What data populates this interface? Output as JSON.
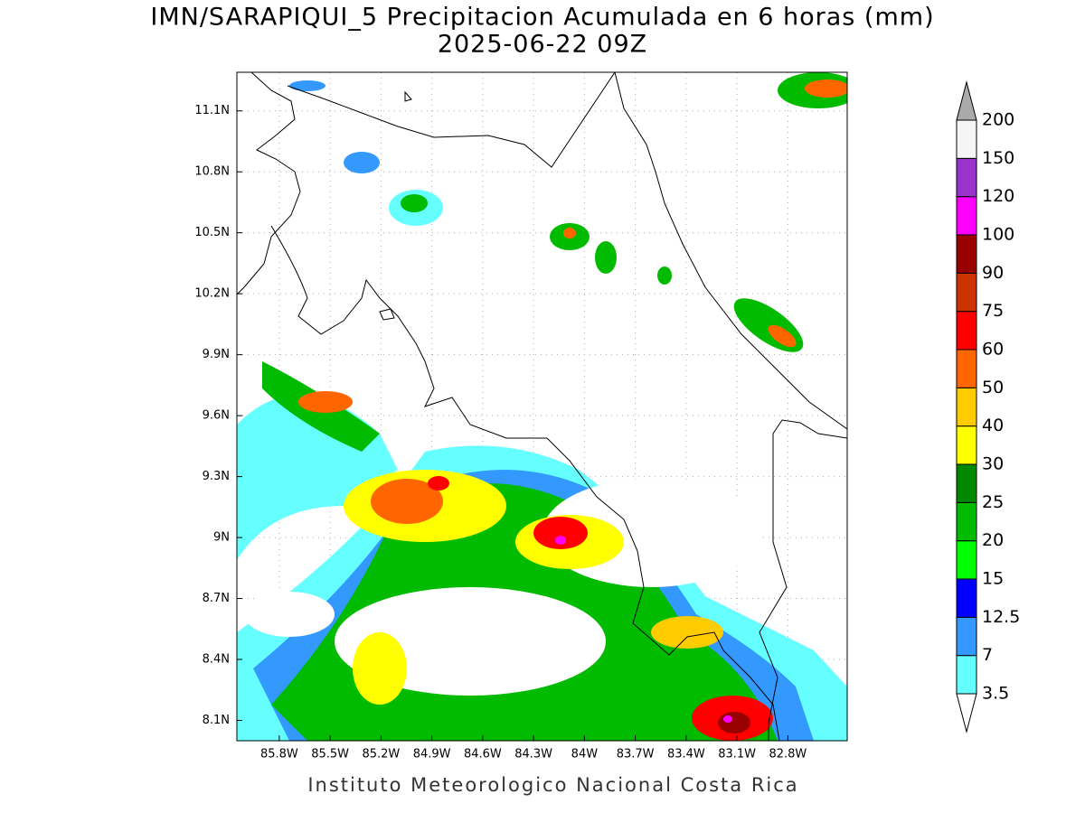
{
  "title": "IMN/SARAPIQUI_5 Precipitacion Acumulada en 6 horas (mm)",
  "subtitle": "2025-06-22 09Z",
  "map": {
    "xlim": [
      -86.05,
      -82.45
    ],
    "ylim": [
      8.0,
      11.29
    ],
    "xticks": [
      {
        "value": -85.8,
        "label": "85.8W"
      },
      {
        "value": -85.5,
        "label": "85.5W"
      },
      {
        "value": -85.2,
        "label": "85.2W"
      },
      {
        "value": -84.9,
        "label": "84.9W"
      },
      {
        "value": -84.6,
        "label": "84.6W"
      },
      {
        "value": -84.3,
        "label": "84.3W"
      },
      {
        "value": -84.0,
        "label": "84W"
      },
      {
        "value": -83.7,
        "label": "83.7W"
      },
      {
        "value": -83.4,
        "label": "83.4W"
      },
      {
        "value": -83.1,
        "label": "83.1W"
      },
      {
        "value": -82.8,
        "label": "82.8W"
      }
    ],
    "yticks": [
      {
        "value": 8.1,
        "label": "8.1N"
      },
      {
        "value": 8.4,
        "label": "8.4N"
      },
      {
        "value": 8.7,
        "label": "8.7N"
      },
      {
        "value": 9.0,
        "label": "9N"
      },
      {
        "value": 9.3,
        "label": "9.3N"
      },
      {
        "value": 9.6,
        "label": "9.6N"
      },
      {
        "value": 9.9,
        "label": "9.9N"
      },
      {
        "value": 10.2,
        "label": "10.2N"
      },
      {
        "value": 10.5,
        "label": "10.5N"
      },
      {
        "value": 10.8,
        "label": "10.8N"
      },
      {
        "value": 11.1,
        "label": "11.1N"
      }
    ],
    "grid": true
  },
  "colorbar": {
    "levels": [
      3.5,
      7,
      12.5,
      15,
      20,
      25,
      30,
      40,
      50,
      60,
      75,
      90,
      100,
      120,
      150,
      200
    ],
    "colors": [
      "#66ffff",
      "#3399ff",
      "#0000ff",
      "#00ff00",
      "#00bb00",
      "#008800",
      "#ffff00",
      "#ffcc00",
      "#ff6600",
      "#ff0000",
      "#cc3300",
      "#990000",
      "#ff00ff",
      "#9933cc",
      "#f5f5f5"
    ],
    "under_color": "#ffffff",
    "over_color": "#aaaaaa"
  },
  "footer": "Instituto Meteorologico Nacional Costa Rica"
}
